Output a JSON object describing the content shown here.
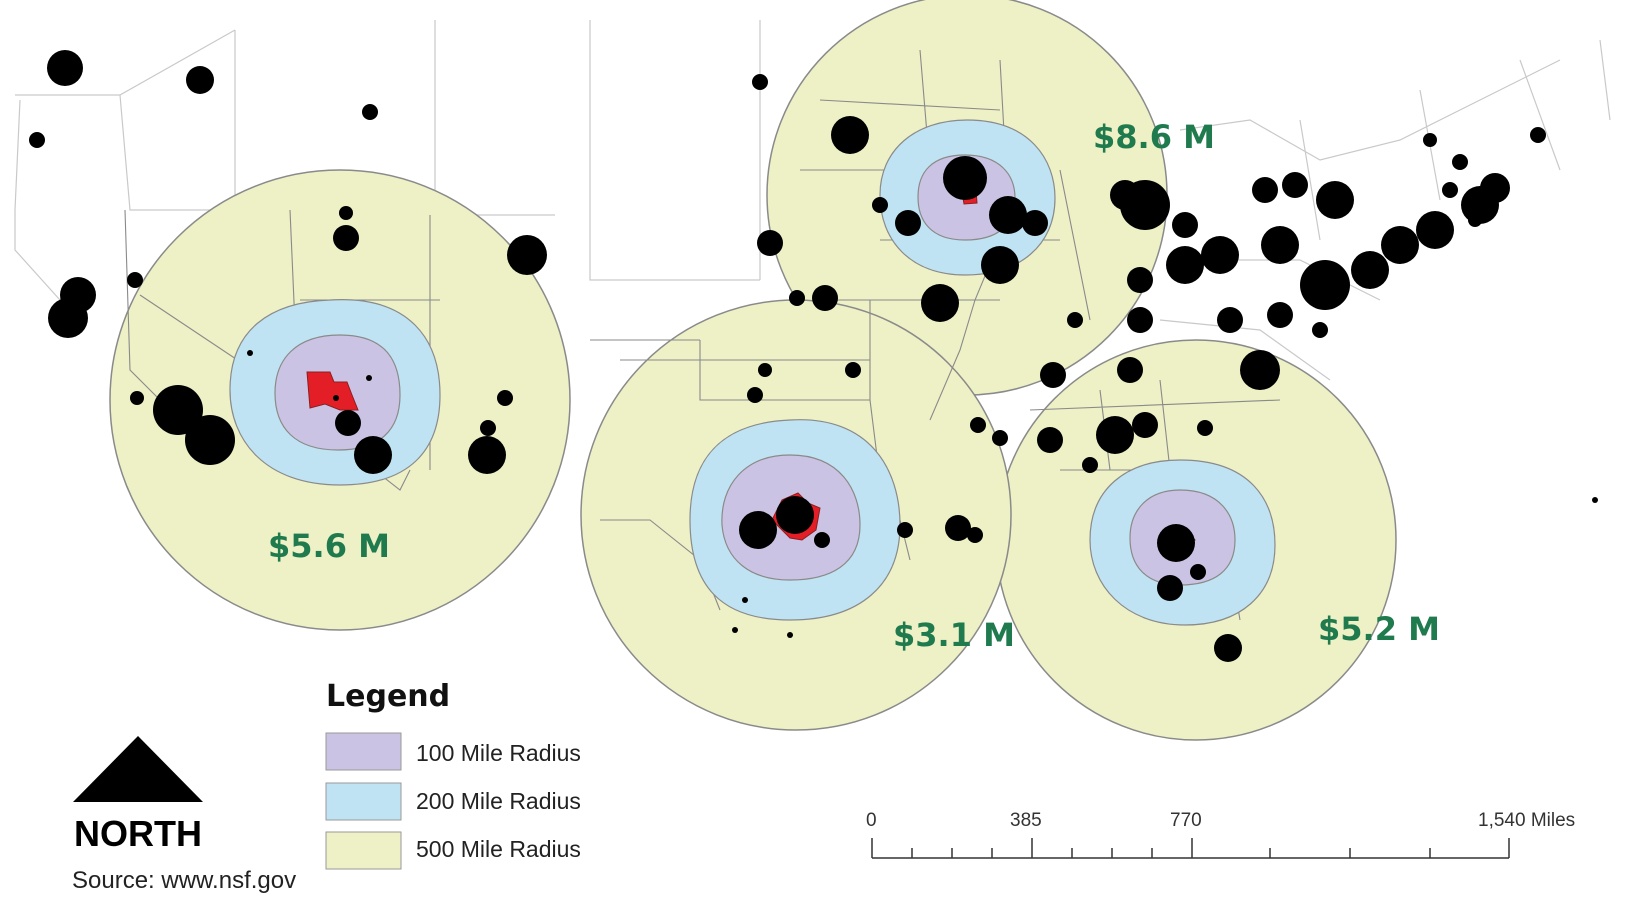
{
  "map": {
    "regions": [
      {
        "id": "southwest",
        "value_label": "$5.6 M"
      },
      {
        "id": "texas",
        "value_label": "$3.1 M"
      },
      {
        "id": "midwest",
        "value_label": "$8.6 M"
      },
      {
        "id": "florida",
        "value_label": "$5.2 M"
      }
    ]
  },
  "legend": {
    "title": "Legend",
    "items": [
      {
        "label": "100 Mile Radius",
        "color": "#cbc3e3"
      },
      {
        "label": "200 Mile Radius",
        "color": "#bfe3f2"
      },
      {
        "label": "500 Mile Radius",
        "color": "#eef0c6"
      }
    ]
  },
  "scale_bar": {
    "ticks": [
      "0",
      "385",
      "770",
      "1,540 Miles"
    ]
  },
  "north_arrow": {
    "label": "NORTH"
  },
  "source": {
    "text": "Source: www.nsf.gov"
  },
  "colors": {
    "site": "#e41e26",
    "dots": "#000000",
    "value_labels": "#1f7a4d",
    "borders": "#8a8a8a"
  }
}
